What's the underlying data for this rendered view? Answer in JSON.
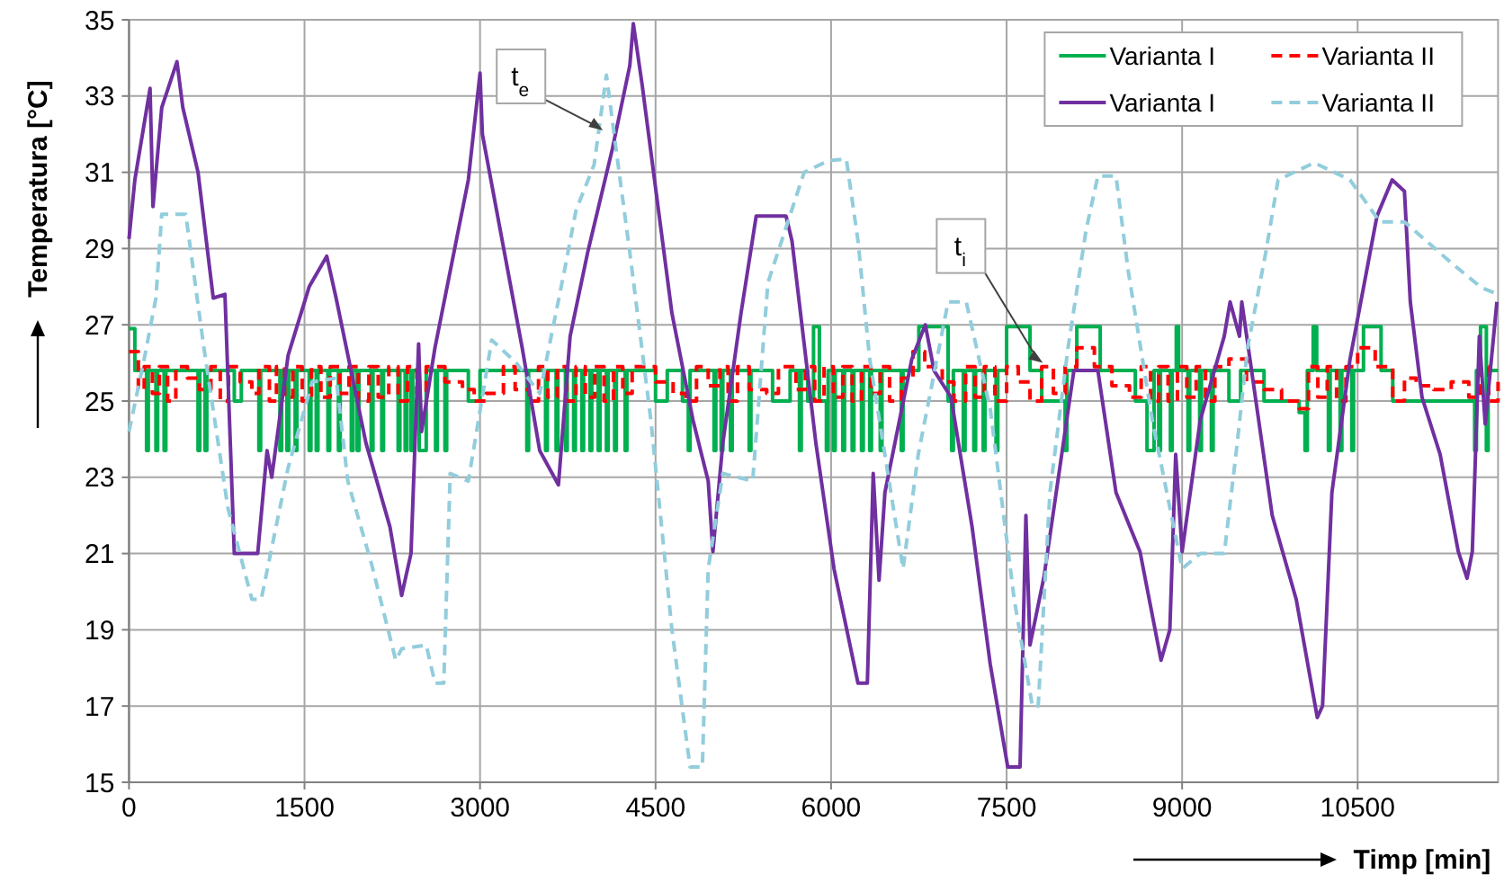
{
  "chart_data": {
    "type": "line",
    "xlabel": "Timp [min]",
    "ylabel": "Temperatura [°C]",
    "xlim": [
      0,
      11700
    ],
    "xticks": [
      0,
      1500,
      3000,
      4500,
      6000,
      7500,
      9000,
      10500
    ],
    "ylim": [
      15,
      35
    ],
    "yticks": [
      15,
      17,
      19,
      21,
      23,
      25,
      27,
      29,
      31,
      33,
      35
    ],
    "grid": true,
    "legend": "top right",
    "marker": "none",
    "series": [
      {
        "name": "Varianta I",
        "type": "step",
        "color": "#00b050",
        "line_style": "solid",
        "x": [
          0,
          50,
          150,
          165,
          230,
          245,
          300,
          315,
          590,
          605,
          650,
          665,
          900,
          960,
          1110,
          1125,
          1290,
          1305,
          1350,
          1365,
          1420,
          1435,
          1540,
          1555,
          1600,
          1615,
          1700,
          1715,
          1790,
          1805,
          1900,
          1915,
          1950,
          1965,
          2070,
          2085,
          2160,
          2175,
          2300,
          2315,
          2360,
          2375,
          2410,
          2425,
          2480,
          2540,
          2620,
          2635,
          2700,
          2715,
          2900,
          3000,
          3400,
          3415,
          3560,
          3575,
          3650,
          3665,
          3730,
          3745,
          3800,
          3815,
          3870,
          3885,
          3940,
          3955,
          4010,
          4025,
          4080,
          4095,
          4150,
          4165,
          4240,
          4255,
          4500,
          4600,
          4730,
          4780,
          4795,
          5000,
          5015,
          5060,
          5075,
          5140,
          5155,
          5300,
          5315,
          5500,
          5650,
          5730,
          5745,
          5800,
          5850,
          5900,
          5960,
          5975,
          6020,
          6035,
          6100,
          6115,
          6180,
          6195,
          6260,
          6275,
          6330,
          6345,
          6420,
          6435,
          6600,
          6615,
          6750,
          7000,
          7030,
          7045,
          7130,
          7145,
          7220,
          7235,
          7300,
          7315,
          7410,
          7425,
          7500,
          7700,
          7800,
          8000,
          8015,
          8100,
          8300,
          8600,
          8700,
          8760,
          8800,
          8815,
          8900,
          8915,
          8950,
          8970,
          9050,
          9065,
          9150,
          9165,
          9250,
          9265,
          9400,
          9500,
          9700,
          10000,
          10050,
          10070,
          10120,
          10150,
          10250,
          10265,
          10350,
          10365,
          10450,
          10465,
          10550,
          10700,
          10800,
          11300,
          11500,
          11515,
          11550,
          11600,
          11615,
          11700
        ],
        "values": [
          26.9,
          25.8,
          23.7,
          25.8,
          23.7,
          25.8,
          23.7,
          25.8,
          23.7,
          25.8,
          23.7,
          25.8,
          25.0,
          25.8,
          23.7,
          25.8,
          23.7,
          25.8,
          23.7,
          25.8,
          23.7,
          25.8,
          23.7,
          25.8,
          23.7,
          25.8,
          23.7,
          25.8,
          23.7,
          25.8,
          23.7,
          25.8,
          23.7,
          25.8,
          23.7,
          25.8,
          23.7,
          25.8,
          23.7,
          25.8,
          23.7,
          25.8,
          23.7,
          25.8,
          23.7,
          25.8,
          23.7,
          25.8,
          23.7,
          25.8,
          25.0,
          25.8,
          23.7,
          25.8,
          23.7,
          25.8,
          23.7,
          25.8,
          23.7,
          25.8,
          23.7,
          25.8,
          23.7,
          25.8,
          23.7,
          25.8,
          23.7,
          25.8,
          23.7,
          25.8,
          23.7,
          25.8,
          23.7,
          25.8,
          25.0,
          25.8,
          25.0,
          23.7,
          25.8,
          23.7,
          25.8,
          23.7,
          25.8,
          23.7,
          25.8,
          23.7,
          25.8,
          25.0,
          25.8,
          23.7,
          25.8,
          25.0,
          26.95,
          25.0,
          23.7,
          25.8,
          23.7,
          25.8,
          23.7,
          25.8,
          23.7,
          25.8,
          23.7,
          25.8,
          23.7,
          25.8,
          23.7,
          25.8,
          23.7,
          25.8,
          26.95,
          25.0,
          23.7,
          25.8,
          23.7,
          25.8,
          23.7,
          25.8,
          23.7,
          25.8,
          23.7,
          25.8,
          26.95,
          25.8,
          25.0,
          23.7,
          25.8,
          26.95,
          25.8,
          25.0,
          23.7,
          25.8,
          23.7,
          25.8,
          23.7,
          25.8,
          26.95,
          25.8,
          23.7,
          25.8,
          23.7,
          25.8,
          23.7,
          25.8,
          25.0,
          25.8,
          25.0,
          24.7,
          23.7,
          25.8,
          26.95,
          25.8,
          23.7,
          25.8,
          23.7,
          25.8,
          23.7,
          25.8,
          26.95,
          25.8,
          25.0,
          25.0,
          23.7,
          25.8,
          26.95,
          23.7,
          25.8,
          25.8
        ]
      },
      {
        "name": "Varianta II",
        "type": "step",
        "color": "#ff0000",
        "line_style": "dashed",
        "x": [
          0,
          80,
          130,
          200,
          260,
          330,
          400,
          500,
          600,
          700,
          780,
          850,
          950,
          1050,
          1110,
          1200,
          1260,
          1330,
          1400,
          1480,
          1560,
          1640,
          1720,
          1800,
          1880,
          1960,
          2050,
          2130,
          2220,
          2300,
          2380,
          2460,
          2540,
          2700,
          2850,
          2950,
          3050,
          3200,
          3300,
          3420,
          3500,
          3580,
          3660,
          3740,
          3820,
          3900,
          3980,
          4060,
          4140,
          4220,
          4300,
          4500,
          4650,
          4760,
          4850,
          4950,
          5050,
          5120,
          5200,
          5300,
          5450,
          5550,
          5700,
          5780,
          5860,
          5940,
          6020,
          6100,
          6180,
          6260,
          6340,
          6420,
          6500,
          6600,
          6700,
          6800,
          6950,
          7050,
          7150,
          7230,
          7310,
          7400,
          7500,
          7600,
          7700,
          7800,
          7900,
          8000,
          8100,
          8250,
          8400,
          8550,
          8650,
          8730,
          8800,
          8880,
          8960,
          9040,
          9120,
          9200,
          9280,
          9400,
          9550,
          9700,
          9850,
          10000,
          10080,
          10160,
          10240,
          10320,
          10400,
          10500,
          10650,
          10800,
          10900,
          11000,
          11150,
          11300,
          11450,
          11550,
          11620,
          11700
        ],
        "values": [
          26.3,
          25.3,
          25.9,
          25.2,
          25.9,
          25.0,
          25.9,
          25.6,
          25.3,
          25.9,
          25.0,
          25.9,
          25.5,
          25.2,
          25.9,
          25.0,
          25.9,
          25.1,
          25.9,
          25.0,
          25.9,
          25.1,
          25.9,
          25.2,
          25.9,
          25.0,
          25.9,
          25.1,
          25.9,
          25.0,
          25.9,
          25.2,
          25.9,
          25.5,
          25.3,
          25.0,
          25.2,
          25.9,
          25.3,
          25.0,
          25.9,
          25.1,
          25.9,
          25.0,
          25.9,
          25.1,
          25.9,
          25.0,
          25.9,
          25.2,
          25.9,
          25.5,
          25.2,
          25.0,
          25.9,
          25.4,
          25.9,
          25.0,
          25.9,
          25.3,
          25.2,
          25.9,
          25.3,
          25.9,
          25.0,
          25.9,
          25.1,
          25.9,
          25.0,
          25.9,
          25.2,
          25.9,
          25.0,
          25.6,
          26.3,
          25.9,
          25.5,
          25.0,
          25.9,
          25.1,
          25.9,
          25.0,
          25.9,
          25.5,
          25.0,
          25.9,
          25.2,
          25.9,
          26.4,
          25.9,
          25.4,
          25.1,
          25.9,
          25.0,
          25.9,
          25.0,
          25.9,
          25.1,
          25.9,
          25.0,
          25.9,
          26.1,
          25.5,
          25.3,
          25.0,
          24.8,
          25.9,
          25.1,
          25.9,
          25.0,
          25.9,
          26.4,
          25.9,
          25.0,
          25.6,
          25.4,
          25.3,
          25.5,
          25.1,
          25.9,
          25.0,
          25.5
        ]
      },
      {
        "name": "Varianta I",
        "color": "#7030a0",
        "line_style": "solid",
        "x": [
          0,
          50,
          180,
          205,
          280,
          410,
          460,
          590,
          720,
          820,
          900,
          1100,
          1180,
          1220,
          1360,
          1540,
          1690,
          1770,
          2025,
          2230,
          2330,
          2410,
          2475,
          2500,
          2615,
          2900,
          3000,
          3020,
          3360,
          3510,
          3670,
          3770,
          3920,
          4130,
          4280,
          4310,
          4385,
          4640,
          4820,
          4950,
          4990,
          5075,
          5230,
          5360,
          5615,
          5666,
          5870,
          6025,
          6230,
          6310,
          6360,
          6410,
          6460,
          6690,
          6805,
          6880,
          7025,
          7205,
          7360,
          7510,
          7615,
          7665,
          7700,
          7820,
          8075,
          8280,
          8435,
          8640,
          8820,
          8895,
          8945,
          9000,
          9155,
          9360,
          9410,
          9490,
          9510,
          9770,
          9975,
          10155,
          10200,
          10280,
          10435,
          10665,
          10795,
          10900,
          10950,
          11050,
          11205,
          11360,
          11435,
          11480,
          11540,
          11590,
          11690
        ],
        "values": [
          29.25,
          30.8,
          33.2,
          30.1,
          32.7,
          33.9,
          32.7,
          31.0,
          27.7,
          27.8,
          21.0,
          21.0,
          23.7,
          23.0,
          26.2,
          28.0,
          28.8,
          27.7,
          23.9,
          21.7,
          19.9,
          21.0,
          26.5,
          24.2,
          26.4,
          30.8,
          33.6,
          32.0,
          26.4,
          23.7,
          22.8,
          26.7,
          28.9,
          31.6,
          33.8,
          34.9,
          33.3,
          27.3,
          24.5,
          22.9,
          21.05,
          23.9,
          27.3,
          29.85,
          29.85,
          29.2,
          23.9,
          20.6,
          17.6,
          17.6,
          23.1,
          20.3,
          22.6,
          26.1,
          27.0,
          25.8,
          25.1,
          21.7,
          18.1,
          15.4,
          15.4,
          22.0,
          18.6,
          20.4,
          25.8,
          25.8,
          22.6,
          21.05,
          18.2,
          19.0,
          23.6,
          21.05,
          24.5,
          26.7,
          27.6,
          26.7,
          27.6,
          22.0,
          19.8,
          16.7,
          17.0,
          22.6,
          26.1,
          29.85,
          30.8,
          30.5,
          27.6,
          25.1,
          23.6,
          21.05,
          20.35,
          21.05,
          26.7,
          24.4,
          27.6
        ]
      },
      {
        "name": "Varianta II",
        "color": "#92cddc",
        "line_style": "dashed",
        "x": [
          0,
          130,
          230,
          280,
          485,
          640,
          845,
          1050,
          1130,
          1360,
          1565,
          1770,
          1870,
          2075,
          2280,
          2330,
          2540,
          2615,
          2690,
          2745,
          2900,
          3100,
          3310,
          3510,
          3720,
          3820,
          3975,
          4080,
          4180,
          4280,
          4460,
          4640,
          4795,
          4900,
          4950,
          5075,
          5330,
          5460,
          5770,
          5975,
          6130,
          6230,
          6330,
          6615,
          6745,
          7000,
          7155,
          7360,
          7565,
          7720,
          7770,
          7870,
          8025,
          8180,
          8280,
          8435,
          8540,
          8745,
          9000,
          9155,
          9360,
          9460,
          9560,
          9715,
          9820,
          10130,
          10435,
          10690,
          10900,
          11310,
          11560,
          11700
        ],
        "values": [
          24.2,
          26.1,
          27.7,
          29.9,
          29.9,
          26.4,
          22.2,
          19.8,
          19.8,
          23.25,
          25.5,
          25.6,
          22.9,
          20.7,
          18.2,
          18.5,
          18.6,
          17.6,
          17.6,
          23.1,
          22.9,
          26.6,
          26.0,
          25.2,
          28.4,
          30.0,
          31.2,
          33.55,
          31.2,
          28.9,
          24.5,
          19.0,
          15.4,
          15.4,
          20.6,
          23.1,
          22.9,
          28.1,
          31.0,
          31.3,
          31.35,
          29.2,
          26.1,
          20.6,
          23.6,
          27.6,
          27.6,
          24.8,
          19.8,
          17.0,
          17.0,
          22.6,
          26.4,
          29.5,
          30.9,
          30.9,
          28.4,
          24.5,
          20.6,
          21.0,
          21.0,
          23.6,
          26.4,
          28.9,
          30.8,
          31.25,
          30.8,
          29.7,
          29.7,
          28.6,
          27.97,
          27.8
        ]
      }
    ],
    "annotations": [
      {
        "text": "t$_{e}$",
        "x": 4050,
        "y": 32.1
      },
      {
        "text": "t$_{i}$",
        "x": 7810,
        "y": 26.0
      }
    ]
  }
}
